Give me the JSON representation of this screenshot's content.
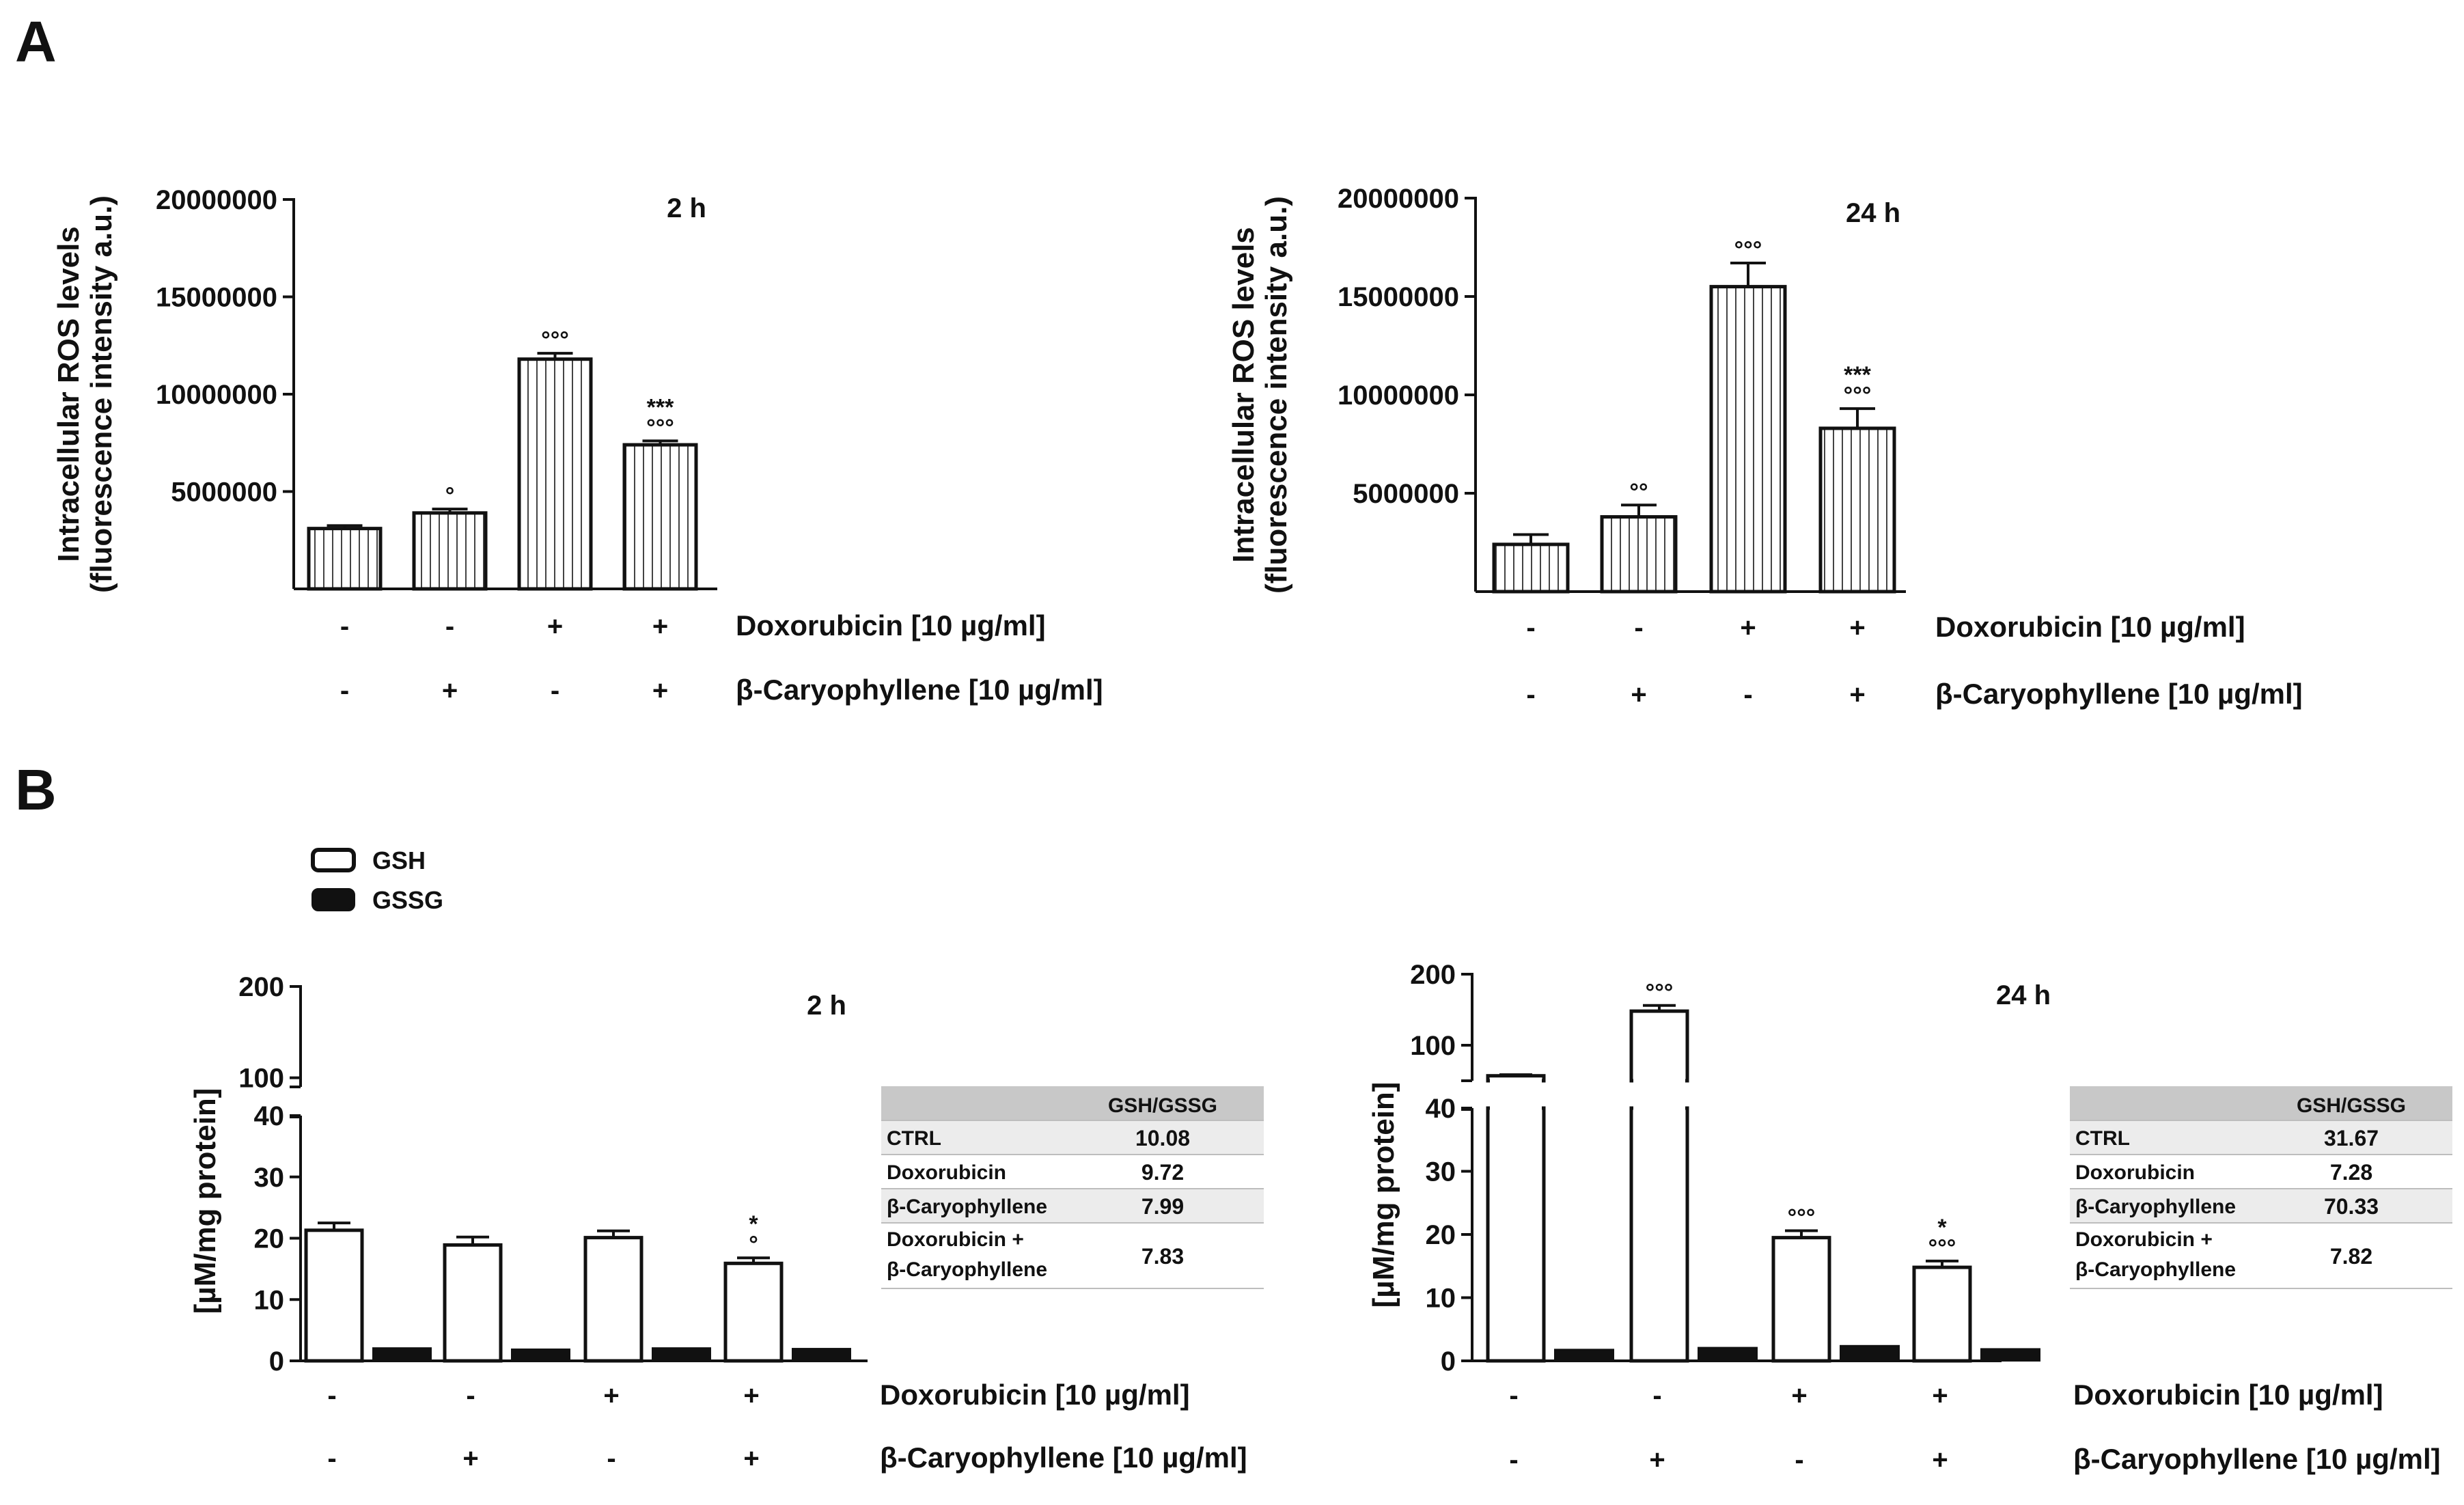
{
  "panels": {
    "a": "A",
    "b": "B"
  },
  "chart_data": [
    {
      "type": "bar",
      "panel": "A",
      "title": "2 h",
      "ylabel_line1": "Intracellular ROS levels",
      "ylabel_line2": "(fluorescence intensity a.u.)",
      "ylim": [
        0,
        20000000
      ],
      "yticks": [
        5000000,
        10000000,
        15000000,
        20000000
      ],
      "ytick_labels": [
        "5000000",
        "10000000",
        "15000000",
        "20000000"
      ],
      "values": [
        3100000,
        3900000,
        11800000,
        7400000
      ],
      "errors": [
        150000,
        200000,
        300000,
        200000
      ],
      "significance": [
        "",
        "°",
        "°°°",
        "***\n°°°"
      ],
      "rows": [
        {
          "label": "Doxorubicin [10 µg/ml]",
          "signs": [
            "-",
            "-",
            "+",
            "+"
          ]
        },
        {
          "label": "β-Caryophyllene [10 µg/ml]",
          "signs": [
            "-",
            "+",
            "-",
            "+"
          ]
        }
      ]
    },
    {
      "type": "bar",
      "panel": "A",
      "title": "24 h",
      "ylabel_line1": "Intracellular ROS levels",
      "ylabel_line2": "(fluorescence intensity a.u.)",
      "ylim": [
        0,
        20000000
      ],
      "yticks": [
        5000000,
        10000000,
        15000000,
        20000000
      ],
      "ytick_labels": [
        "5000000",
        "10000000",
        "15000000",
        "20000000"
      ],
      "values": [
        2400000,
        3800000,
        15500000,
        8300000
      ],
      "errors": [
        500000,
        600000,
        1200000,
        1000000
      ],
      "significance": [
        "",
        "°°",
        "°°°",
        "***\n°°°"
      ],
      "rows": [
        {
          "label": "Doxorubicin [10 µg/ml]",
          "signs": [
            "-",
            "-",
            "+",
            "+"
          ]
        },
        {
          "label": "β-Caryophyllene [10 µg/ml]",
          "signs": [
            "-",
            "+",
            "-",
            "+"
          ]
        }
      ]
    },
    {
      "type": "bar",
      "panel": "B",
      "title": "2 h",
      "ylabel": "[µM/mg protein]",
      "ylim": [
        0,
        200
      ],
      "axis_break": [
        40,
        90
      ],
      "yticks": [
        0,
        10,
        20,
        30,
        40,
        100,
        200
      ],
      "ytick_labels": [
        "0",
        "10",
        "20",
        "30",
        "40",
        "100",
        "200"
      ],
      "legend": [
        "GSH",
        "GSSG"
      ],
      "series": [
        {
          "name": "GSH",
          "values": [
            21.3,
            18.9,
            20.1,
            15.9
          ],
          "errors": [
            1.2,
            1.3,
            1.1,
            0.9
          ]
        },
        {
          "name": "GSSG",
          "values": [
            2.1,
            1.9,
            2.1,
            2.0
          ],
          "errors": [
            0.2,
            0.2,
            0.2,
            0.2
          ]
        }
      ],
      "significance": [
        "",
        "",
        "",
        "*\n°"
      ],
      "rows": [
        {
          "label": "Doxorubicin [10 µg/ml]",
          "signs": [
            "-",
            "-",
            "+",
            "+"
          ]
        },
        {
          "label": "β-Caryophyllene [10 µg/ml]",
          "signs": [
            "-",
            "+",
            "-",
            "+"
          ]
        }
      ],
      "table": {
        "header": "GSH/GSSG",
        "rows": [
          {
            "label": "CTRL",
            "value": "10.08"
          },
          {
            "label": "Doxorubicin",
            "value": "9.72"
          },
          {
            "label": "β-Caryophyllene",
            "value": "7.99"
          },
          {
            "label": "Doxorubicin +",
            "label2": "β-Caryophyllene",
            "value": "7.83"
          }
        ]
      }
    },
    {
      "type": "bar",
      "panel": "B",
      "title": "24 h",
      "ylabel": "[µM/mg protein]",
      "ylim": [
        0,
        200
      ],
      "axis_break": [
        40,
        50
      ],
      "yticks": [
        0,
        10,
        20,
        30,
        40,
        100,
        200
      ],
      "ytick_labels": [
        "0",
        "10",
        "20",
        "30",
        "40",
        "100",
        "200"
      ],
      "series": [
        {
          "name": "GSH",
          "values": [
            57,
            148,
            19.5,
            14.8
          ],
          "errors": [
            1.5,
            8,
            1.1,
            1.0
          ]
        },
        {
          "name": "GSSG",
          "values": [
            1.8,
            2.1,
            2.4,
            1.9
          ],
          "errors": [
            0.2,
            0.2,
            0.2,
            0.2
          ]
        }
      ],
      "significance": [
        "",
        "°°°",
        "°°°",
        "*\n°°°"
      ],
      "rows": [
        {
          "label": "Doxorubicin [10 µg/ml]",
          "signs": [
            "-",
            "-",
            "+",
            "+"
          ]
        },
        {
          "label": "β-Caryophyllene [10 µg/ml]",
          "signs": [
            "-",
            "+",
            "-",
            "+"
          ]
        }
      ],
      "table": {
        "header": "GSH/GSSG",
        "rows": [
          {
            "label": "CTRL",
            "value": "31.67"
          },
          {
            "label": "Doxorubicin",
            "value": "7.28"
          },
          {
            "label": "β-Caryophyllene",
            "value": "70.33"
          },
          {
            "label": "Doxorubicin +",
            "label2": "β-Caryophyllene",
            "value": "7.82"
          }
        ]
      }
    }
  ]
}
